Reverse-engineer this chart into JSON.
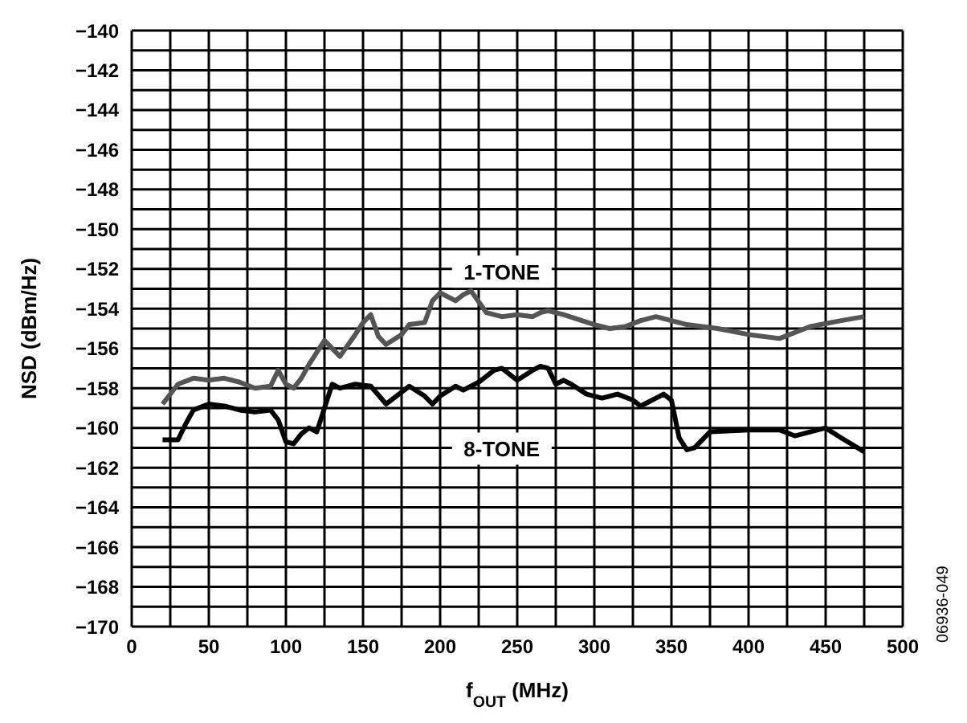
{
  "chart_data": {
    "type": "line",
    "xlabel": "f$_{OUT}$ (MHz)",
    "ylabel": "NSD (dBm/Hz)",
    "xlim": [
      0,
      500
    ],
    "xticks": [
      0,
      {
        "value": 25,
        "label": null
      },
      50,
      {
        "value": 75,
        "label": null
      },
      100,
      {
        "value": 125,
        "label": null
      },
      150,
      {
        "value": 175,
        "label": null
      },
      200,
      {
        "value": 225,
        "label": null
      },
      250,
      {
        "value": 275,
        "label": null
      },
      300,
      {
        "value": 325,
        "label": null
      },
      350,
      {
        "value": 375,
        "label": null
      },
      400,
      {
        "value": 425,
        "label": null
      },
      450,
      {
        "value": 475,
        "label": null
      },
      500
    ],
    "ylim": [
      -170,
      -140
    ],
    "yticks": [
      {
        "value": -170,
        "label": "−170"
      },
      {
        "value": -169,
        "label": null
      },
      {
        "value": -168,
        "label": "−168"
      },
      {
        "value": -167,
        "label": null
      },
      {
        "value": -166,
        "label": "−166"
      },
      {
        "value": -165,
        "label": null
      },
      {
        "value": -164,
        "label": "−164"
      },
      {
        "value": -163,
        "label": null
      },
      {
        "value": -162,
        "label": "−162"
      },
      {
        "value": -161,
        "label": null
      },
      {
        "value": -160,
        "label": "−160"
      },
      {
        "value": -159,
        "label": null
      },
      {
        "value": -158,
        "label": "−158"
      },
      {
        "value": -157,
        "label": null
      },
      {
        "value": -156,
        "label": "−156"
      },
      {
        "value": -155,
        "label": null
      },
      {
        "value": -154,
        "label": "−154"
      },
      {
        "value": -153,
        "label": null
      },
      {
        "value": -152,
        "label": "−152"
      },
      {
        "value": -151,
        "label": null
      },
      {
        "value": -150,
        "label": "−150"
      },
      {
        "value": -149,
        "label": null
      },
      {
        "value": -148,
        "label": "−148"
      },
      {
        "value": -147,
        "label": null
      },
      {
        "value": -146,
        "label": "−146"
      },
      {
        "value": -145,
        "label": null
      },
      {
        "value": -144,
        "label": "−144"
      },
      {
        "value": -143,
        "label": null
      },
      {
        "value": -142,
        "label": "−142"
      },
      {
        "value": -141,
        "label": null
      },
      {
        "value": -140,
        "label": "−140"
      }
    ],
    "grid": true,
    "legend": false,
    "marker": "none",
    "line_style": "solid",
    "series": [
      {
        "name": "1-TONE",
        "color": "#555555",
        "x": [
          20,
          30,
          40,
          50,
          60,
          70,
          80,
          90,
          95,
          100,
          105,
          110,
          115,
          120,
          125,
          135,
          145,
          150,
          155,
          160,
          165,
          175,
          180,
          190,
          195,
          200,
          210,
          215,
          220,
          230,
          240,
          250,
          260,
          265,
          270,
          280,
          300,
          310,
          320,
          330,
          340,
          350,
          360,
          380,
          400,
          420,
          430,
          440,
          460,
          475
        ],
        "values": [
          -158.8,
          -157.8,
          -157.5,
          -157.6,
          -157.5,
          -157.7,
          -158,
          -157.9,
          -157.1,
          -157.8,
          -158,
          -157.5,
          -156.8,
          -156.2,
          -155.6,
          -156.4,
          -155.3,
          -154.7,
          -154.3,
          -155.4,
          -155.8,
          -155.3,
          -154.8,
          -154.7,
          -153.6,
          -153.2,
          -153.6,
          -153.3,
          -153.1,
          -154.2,
          -154.4,
          -154.3,
          -154.4,
          -154.2,
          -154.1,
          -154.3,
          -154.8,
          -155,
          -154.9,
          -154.6,
          -154.4,
          -154.6,
          -154.8,
          -155,
          -155.3,
          -155.5,
          -155.2,
          -154.9,
          -154.6,
          -154.4
        ]
      },
      {
        "name": "8-TONE",
        "color": "#000000",
        "x": [
          20,
          30,
          35,
          40,
          50,
          60,
          70,
          80,
          90,
          95,
          100,
          105,
          110,
          115,
          120,
          125,
          130,
          135,
          145,
          155,
          165,
          175,
          180,
          190,
          195,
          200,
          210,
          215,
          225,
          235,
          240,
          250,
          260,
          265,
          270,
          275,
          280,
          285,
          295,
          305,
          315,
          325,
          330,
          345,
          350,
          355,
          360,
          365,
          375,
          400,
          420,
          430,
          440,
          450,
          460,
          475
        ],
        "values": [
          -160.6,
          -160.6,
          -159.8,
          -159.1,
          -158.8,
          -158.9,
          -159.1,
          -159.2,
          -159.1,
          -159.6,
          -160.7,
          -160.8,
          -160.3,
          -160,
          -160.2,
          -159,
          -157.8,
          -158,
          -157.8,
          -157.9,
          -158.8,
          -158.2,
          -157.9,
          -158.4,
          -158.8,
          -158.4,
          -157.9,
          -158.1,
          -157.7,
          -157.1,
          -157,
          -157.6,
          -157.1,
          -156.9,
          -157,
          -157.8,
          -157.6,
          -157.8,
          -158.3,
          -158.5,
          -158.3,
          -158.6,
          -158.9,
          -158.3,
          -158.6,
          -160.5,
          -161.1,
          -161,
          -160.2,
          -160.1,
          -160.1,
          -160.4,
          -160.2,
          -160,
          -160.5,
          -161.2
        ]
      }
    ],
    "annotations": [
      "06936-049"
    ]
  }
}
